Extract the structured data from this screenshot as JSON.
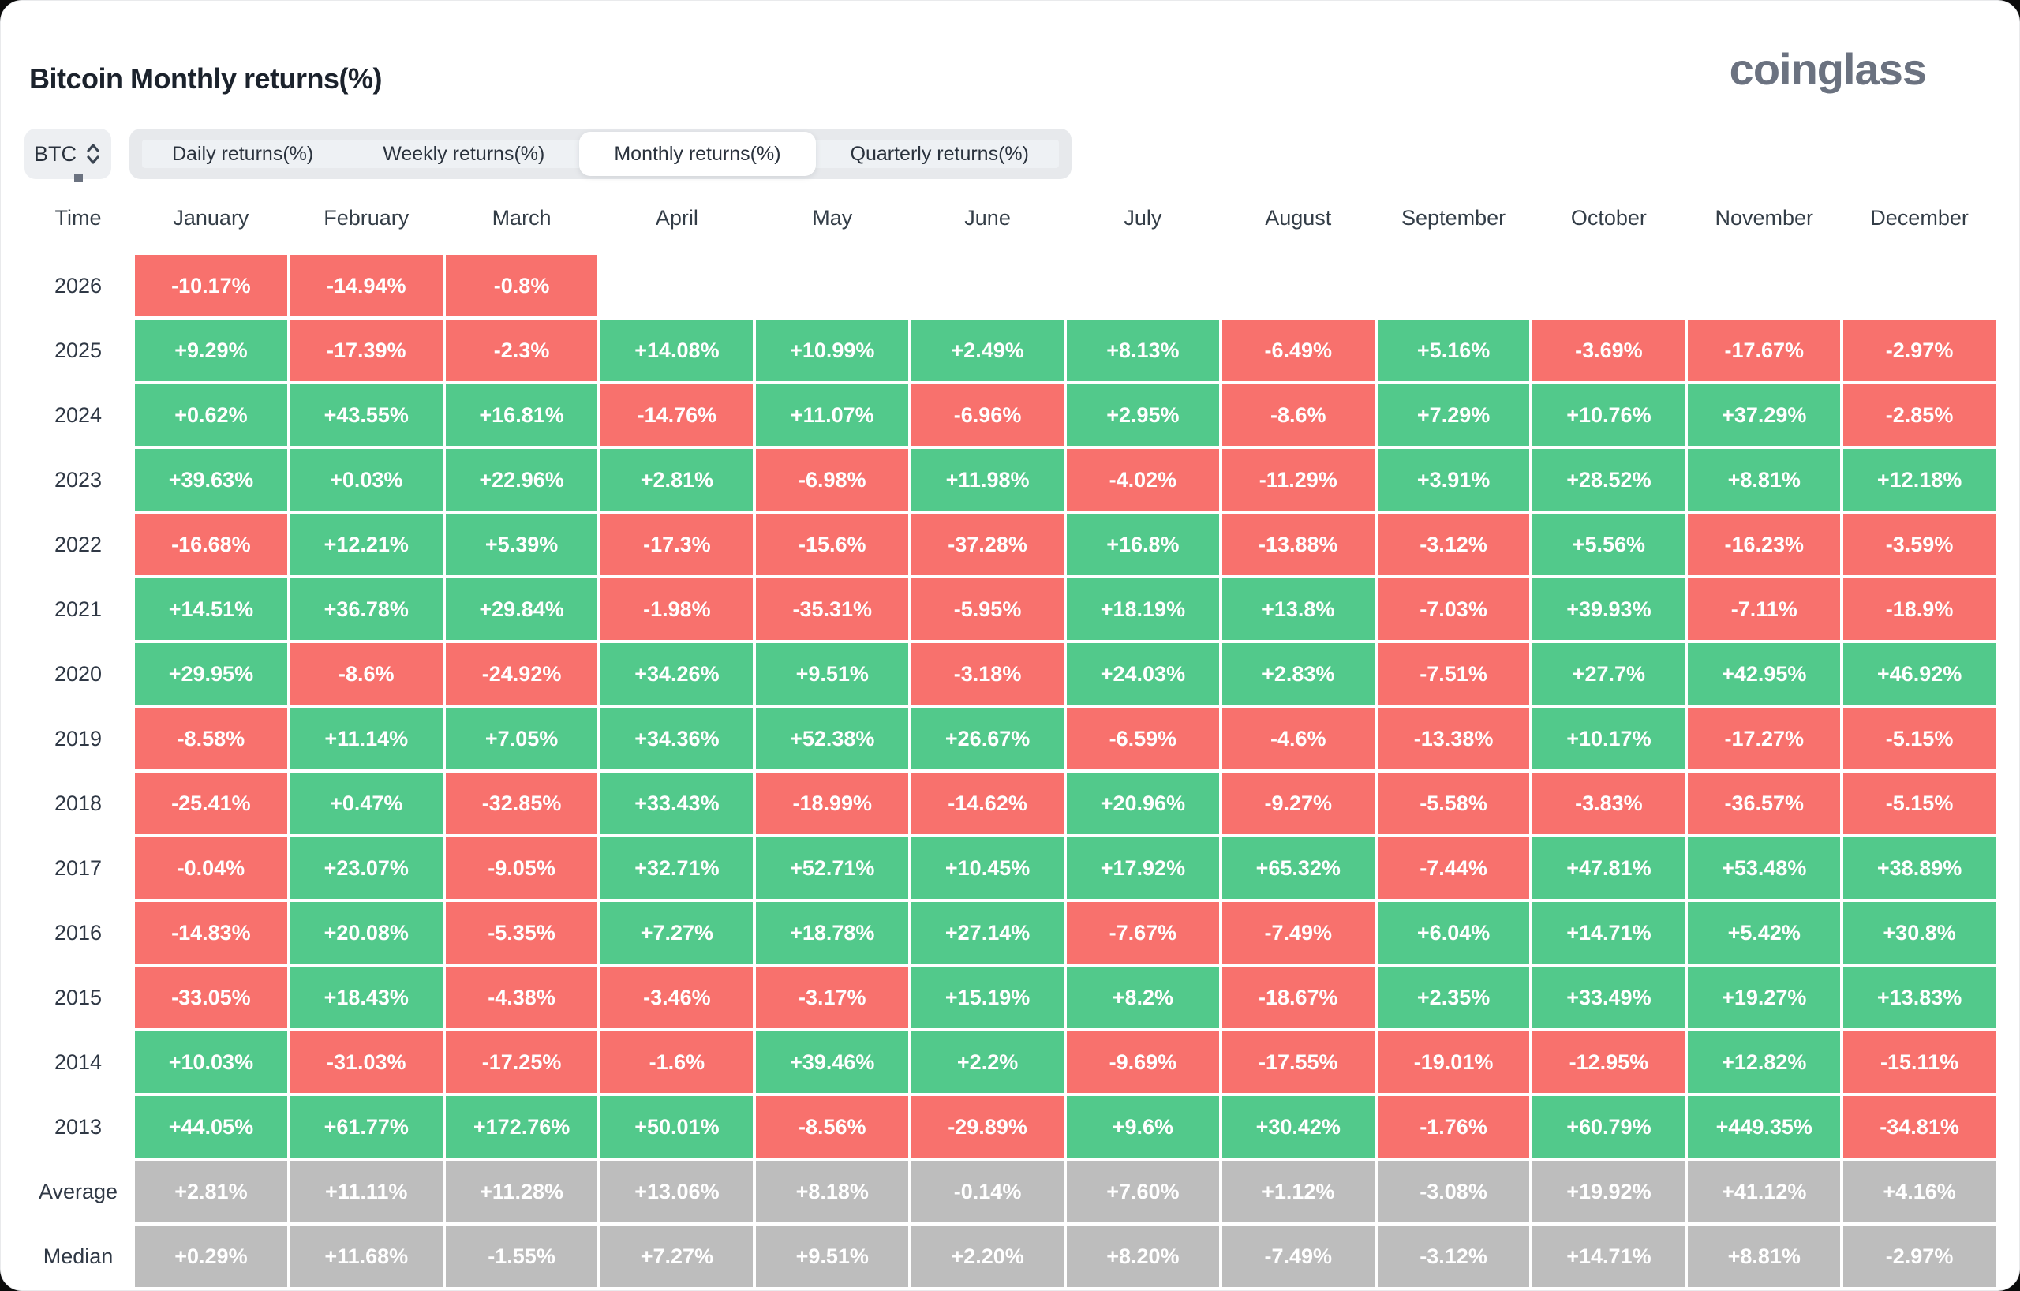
{
  "header": {
    "title": "Bitcoin Monthly returns(%)",
    "logo": "coinglass"
  },
  "controls": {
    "symbol": "BTC",
    "tabs": [
      {
        "label": "Daily returns(%)",
        "active": false
      },
      {
        "label": "Weekly returns(%)",
        "active": false
      },
      {
        "label": "Monthly returns(%)",
        "active": true
      },
      {
        "label": "Quarterly returns(%)",
        "active": false
      }
    ]
  },
  "colors": {
    "positive": "#52c98b",
    "negative": "#f8716d",
    "summary": "#bdbdbd"
  },
  "chart_data": {
    "type": "heatmap",
    "title": "Bitcoin Monthly returns(%)",
    "legend_position": "none",
    "columns": [
      "Time",
      "January",
      "February",
      "March",
      "April",
      "May",
      "June",
      "July",
      "August",
      "September",
      "October",
      "November",
      "December"
    ],
    "rows": [
      {
        "label": "2026",
        "summary": false,
        "values": [
          "-10.17%",
          "-14.94%",
          "-0.8%",
          "",
          "",
          "",
          "",
          "",
          "",
          "",
          "",
          ""
        ]
      },
      {
        "label": "2025",
        "summary": false,
        "values": [
          "+9.29%",
          "-17.39%",
          "-2.3%",
          "+14.08%",
          "+10.99%",
          "+2.49%",
          "+8.13%",
          "-6.49%",
          "+5.16%",
          "-3.69%",
          "-17.67%",
          "-2.97%"
        ]
      },
      {
        "label": "2024",
        "summary": false,
        "values": [
          "+0.62%",
          "+43.55%",
          "+16.81%",
          "-14.76%",
          "+11.07%",
          "-6.96%",
          "+2.95%",
          "-8.6%",
          "+7.29%",
          "+10.76%",
          "+37.29%",
          "-2.85%"
        ]
      },
      {
        "label": "2023",
        "summary": false,
        "values": [
          "+39.63%",
          "+0.03%",
          "+22.96%",
          "+2.81%",
          "-6.98%",
          "+11.98%",
          "-4.02%",
          "-11.29%",
          "+3.91%",
          "+28.52%",
          "+8.81%",
          "+12.18%"
        ]
      },
      {
        "label": "2022",
        "summary": false,
        "values": [
          "-16.68%",
          "+12.21%",
          "+5.39%",
          "-17.3%",
          "-15.6%",
          "-37.28%",
          "+16.8%",
          "-13.88%",
          "-3.12%",
          "+5.56%",
          "-16.23%",
          "-3.59%"
        ]
      },
      {
        "label": "2021",
        "summary": false,
        "values": [
          "+14.51%",
          "+36.78%",
          "+29.84%",
          "-1.98%",
          "-35.31%",
          "-5.95%",
          "+18.19%",
          "+13.8%",
          "-7.03%",
          "+39.93%",
          "-7.11%",
          "-18.9%"
        ]
      },
      {
        "label": "2020",
        "summary": false,
        "values": [
          "+29.95%",
          "-8.6%",
          "-24.92%",
          "+34.26%",
          "+9.51%",
          "-3.18%",
          "+24.03%",
          "+2.83%",
          "-7.51%",
          "+27.7%",
          "+42.95%",
          "+46.92%"
        ]
      },
      {
        "label": "2019",
        "summary": false,
        "values": [
          "-8.58%",
          "+11.14%",
          "+7.05%",
          "+34.36%",
          "+52.38%",
          "+26.67%",
          "-6.59%",
          "-4.6%",
          "-13.38%",
          "+10.17%",
          "-17.27%",
          "-5.15%"
        ]
      },
      {
        "label": "2018",
        "summary": false,
        "values": [
          "-25.41%",
          "+0.47%",
          "-32.85%",
          "+33.43%",
          "-18.99%",
          "-14.62%",
          "+20.96%",
          "-9.27%",
          "-5.58%",
          "-3.83%",
          "-36.57%",
          "-5.15%"
        ]
      },
      {
        "label": "2017",
        "summary": false,
        "values": [
          "-0.04%",
          "+23.07%",
          "-9.05%",
          "+32.71%",
          "+52.71%",
          "+10.45%",
          "+17.92%",
          "+65.32%",
          "-7.44%",
          "+47.81%",
          "+53.48%",
          "+38.89%"
        ]
      },
      {
        "label": "2016",
        "summary": false,
        "values": [
          "-14.83%",
          "+20.08%",
          "-5.35%",
          "+7.27%",
          "+18.78%",
          "+27.14%",
          "-7.67%",
          "-7.49%",
          "+6.04%",
          "+14.71%",
          "+5.42%",
          "+30.8%"
        ]
      },
      {
        "label": "2015",
        "summary": false,
        "values": [
          "-33.05%",
          "+18.43%",
          "-4.38%",
          "-3.46%",
          "-3.17%",
          "+15.19%",
          "+8.2%",
          "-18.67%",
          "+2.35%",
          "+33.49%",
          "+19.27%",
          "+13.83%"
        ]
      },
      {
        "label": "2014",
        "summary": false,
        "values": [
          "+10.03%",
          "-31.03%",
          "-17.25%",
          "-1.6%",
          "+39.46%",
          "+2.2%",
          "-9.69%",
          "-17.55%",
          "-19.01%",
          "-12.95%",
          "+12.82%",
          "-15.11%"
        ]
      },
      {
        "label": "2013",
        "summary": false,
        "values": [
          "+44.05%",
          "+61.77%",
          "+172.76%",
          "+50.01%",
          "-8.56%",
          "-29.89%",
          "+9.6%",
          "+30.42%",
          "-1.76%",
          "+60.79%",
          "+449.35%",
          "-34.81%"
        ]
      },
      {
        "label": "Average",
        "summary": true,
        "values": [
          "+2.81%",
          "+11.11%",
          "+11.28%",
          "+13.06%",
          "+8.18%",
          "-0.14%",
          "+7.60%",
          "+1.12%",
          "-3.08%",
          "+19.92%",
          "+41.12%",
          "+4.16%"
        ]
      },
      {
        "label": "Median",
        "summary": true,
        "values": [
          "+0.29%",
          "+11.68%",
          "-1.55%",
          "+7.27%",
          "+9.51%",
          "+2.20%",
          "+8.20%",
          "-7.49%",
          "-3.12%",
          "+14.71%",
          "+8.81%",
          "-2.97%"
        ]
      }
    ]
  }
}
